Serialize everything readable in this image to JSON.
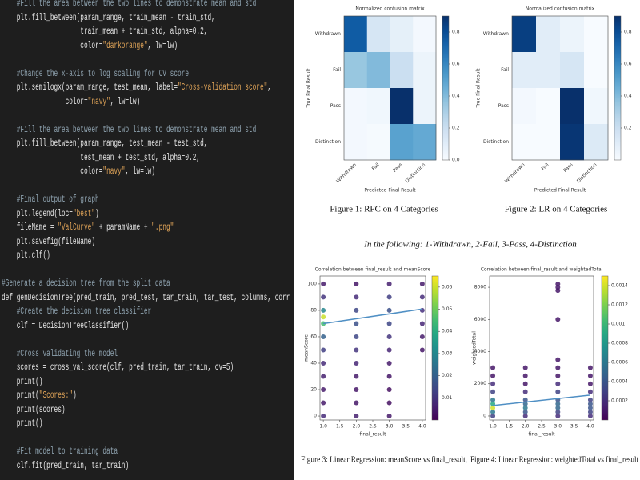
{
  "code": {
    "blocks": [
      [
        "    #Fill the area between the two lines to demonstrate mean and std",
        "    plt.fill_between(param_range, train_mean - train_std,",
        "                     train_mean + train_std, alpha=0.2,",
        "                     color=\"darkorange\", lw=lw)"
      ],
      [
        "    #Change the x-axis to log scaling for CV score",
        "    plt.semilogx(param_range, test_mean, label=\"Cross-validation score\",",
        "                 color=\"navy\", lw=lw)"
      ],
      [
        "    #Fill the area between the two lines to demonstrate mean and std",
        "    plt.fill_between(param_range, test_mean - test_std,",
        "                     test_mean + test_std, alpha=0.2,",
        "                     color=\"navy\", lw=lw)"
      ],
      [
        "    #Final output of graph",
        "    plt.legend(loc=\"best\")",
        "    fileName = \"ValCurve\" + paramName + \".png\"",
        "    plt.savefig(fileName)",
        "    plt.clf()"
      ],
      [
        "#Generate a decision tree from the split data",
        "def genDecisionTree(pred_train, pred_test, tar_train, tar_test, columns, corr",
        "    #Create the decision tree classifier",
        "    clf = DecisionTreeClassifier()"
      ],
      [
        "    #Cross validating the model",
        "    scores = cross_val_score(clf, pred_train, tar_train, cv=5)",
        "    print()",
        "    print(\"Scores:\")",
        "    print(scores)",
        "    print()"
      ],
      [
        "    #Fit model to training data",
        "    clf.fit(pred_train, tar_train)"
      ]
    ]
  },
  "captions": [
    "Figure 1: RFC on 4 Categories",
    "Figure 2: LR on 4 Categories",
    "Figure 3: Linear Regression: meanScore vs final_result,",
    "Figure 4: Linear Regression: weightedTotal vs final_result"
  ],
  "note": "In the following: 1-Withdrawn, 2-Fail, 3-Pass, 4-Distinction",
  "chart_data": [
    {
      "type": "heatmap",
      "title": "Normalized confusion matrix",
      "x_label": "Predicted Final Result",
      "y_label": "True Final Result",
      "categories": [
        "Withdrawn",
        "Fail",
        "Pass",
        "Distinction"
      ],
      "values": [
        [
          0.75,
          0.15,
          0.08,
          0.02
        ],
        [
          0.35,
          0.4,
          0.2,
          0.05
        ],
        [
          0.02,
          0.03,
          0.9,
          0.05
        ],
        [
          0.02,
          0.01,
          0.5,
          0.47
        ]
      ],
      "colormap": "Blues",
      "clim": [
        0,
        0.9
      ],
      "cticks": [
        {
          "value": 0,
          "label": "0.0"
        },
        0.2,
        0.4,
        0.6,
        0.8
      ]
    },
    {
      "type": "heatmap",
      "title": "Normalized confusion matrix",
      "x_label": "Predicted Final Result",
      "y_label": "True Final Result",
      "categories": [
        "Withdrawn",
        "Fail",
        "Pass",
        "Distinction"
      ],
      "values": [
        [
          0.85,
          0.1,
          0.05,
          0.0
        ],
        [
          0.1,
          0.1,
          0.15,
          0.0
        ],
        [
          0.02,
          0.0,
          0.95,
          0.03
        ],
        [
          0.0,
          0.0,
          0.88,
          0.12
        ]
      ],
      "colormap": "Blues",
      "clim": [
        0,
        0.9
      ],
      "cticks": [
        0.2,
        0.4,
        0.6,
        0.8
      ]
    },
    {
      "type": "scatter",
      "title": "Correlation between final_result and meanScore",
      "x_label": "final_result",
      "y_label": "meanScore",
      "x": [
        1,
        1,
        1,
        1,
        1,
        1,
        1,
        1,
        1,
        1,
        1,
        1,
        2,
        2,
        2,
        2,
        2,
        2,
        2,
        2,
        2,
        2,
        2,
        3,
        3,
        3,
        3,
        3,
        3,
        3,
        3,
        3,
        3,
        3,
        4,
        4,
        4,
        4,
        4,
        4
      ],
      "y": [
        0,
        10,
        20,
        30,
        40,
        50,
        60,
        70,
        75,
        80,
        90,
        100,
        0,
        10,
        20,
        30,
        40,
        50,
        60,
        70,
        80,
        90,
        100,
        0,
        10,
        20,
        30,
        40,
        50,
        60,
        70,
        80,
        90,
        100,
        50,
        60,
        70,
        80,
        90,
        100
      ],
      "c": [
        0.008,
        0.005,
        0.005,
        0.006,
        0.008,
        0.012,
        0.02,
        0.045,
        0.06,
        0.03,
        0.01,
        0.005,
        0.006,
        0.004,
        0.004,
        0.005,
        0.007,
        0.01,
        0.014,
        0.016,
        0.014,
        0.008,
        0.004,
        0.005,
        0.003,
        0.003,
        0.004,
        0.005,
        0.007,
        0.01,
        0.014,
        0.016,
        0.012,
        0.006,
        0.004,
        0.005,
        0.007,
        0.009,
        0.008,
        0.005
      ],
      "colormap": "viridis",
      "clim": [
        0,
        0.065
      ],
      "cticks": [
        0.01,
        0.02,
        0.03,
        0.04,
        0.05,
        0.06
      ],
      "fit": {
        "x": [
          1,
          4
        ],
        "y": [
          70,
          81
        ],
        "color": "#4f8fc4"
      },
      "xlim": [
        0.9,
        4.1
      ],
      "xticks": [
        {
          "value": 1,
          "label": "1.0"
        },
        1.5,
        {
          "value": 2,
          "label": "2.0"
        },
        2.5,
        {
          "value": 3,
          "label": "3.0"
        },
        3.5,
        {
          "value": 4,
          "label": "4.0"
        }
      ],
      "ylim": [
        -3,
        106
      ],
      "yticks": [
        0,
        20,
        40,
        60,
        80,
        100
      ]
    },
    {
      "type": "scatter",
      "title": "Correlation between final_result and weightedTotal",
      "x_label": "final_result",
      "y_label": "weightedTotal",
      "x": [
        1,
        1,
        1,
        1,
        1,
        1,
        1,
        1,
        1,
        2,
        2,
        2,
        2,
        2,
        2,
        2,
        2,
        2,
        3,
        3,
        3,
        3,
        3,
        3,
        3,
        3,
        3,
        3,
        3,
        3,
        3,
        3,
        4,
        4,
        4,
        4,
        4,
        4,
        4,
        4,
        4
      ],
      "y": [
        0,
        250,
        500,
        750,
        1000,
        1500,
        2000,
        2500,
        3000,
        0,
        250,
        500,
        750,
        1000,
        1500,
        2000,
        2500,
        3000,
        0,
        250,
        500,
        750,
        1000,
        1500,
        2000,
        2500,
        3000,
        3500,
        6000,
        7800,
        8000,
        8200,
        0,
        250,
        500,
        750,
        1000,
        1500,
        2000,
        2500,
        3000
      ],
      "c": [
        0.0003,
        0.0006,
        0.0014,
        0.0009,
        0.0006,
        0.0003,
        0.0002,
        0.0001,
        0.0001,
        0.0002,
        0.0004,
        0.0006,
        0.0005,
        0.0004,
        0.0002,
        0.0001,
        0.0001,
        0.0001,
        0.0002,
        0.0003,
        0.0005,
        0.0005,
        0.0004,
        0.0003,
        0.0002,
        0.0001,
        0.0001,
        0.0001,
        0.0001,
        0.0001,
        0.0001,
        0.0001,
        0.0002,
        0.0003,
        0.0004,
        0.0004,
        0.0003,
        0.0002,
        0.0001,
        0.0001,
        0.0001
      ],
      "colormap": "viridis",
      "clim": [
        0,
        0.0015
      ],
      "cticks": [
        0.0002,
        0.0004,
        0.0006,
        0.0008,
        0.001,
        0.0012,
        0.0014
      ],
      "fit": {
        "x": [
          1,
          4
        ],
        "y": [
          650,
          1300
        ],
        "color": "#4f8fc4"
      },
      "xlim": [
        0.9,
        4.1
      ],
      "xticks": [
        {
          "value": 1,
          "label": "1.0"
        },
        1.5,
        {
          "value": 2,
          "label": "2.0"
        },
        2.5,
        {
          "value": 3,
          "label": "3.0"
        },
        3.5,
        {
          "value": 4,
          "label": "4.0"
        }
      ],
      "ylim": [
        -250,
        8700
      ],
      "yticks": [
        0,
        2000,
        4000,
        6000,
        8000
      ]
    }
  ]
}
